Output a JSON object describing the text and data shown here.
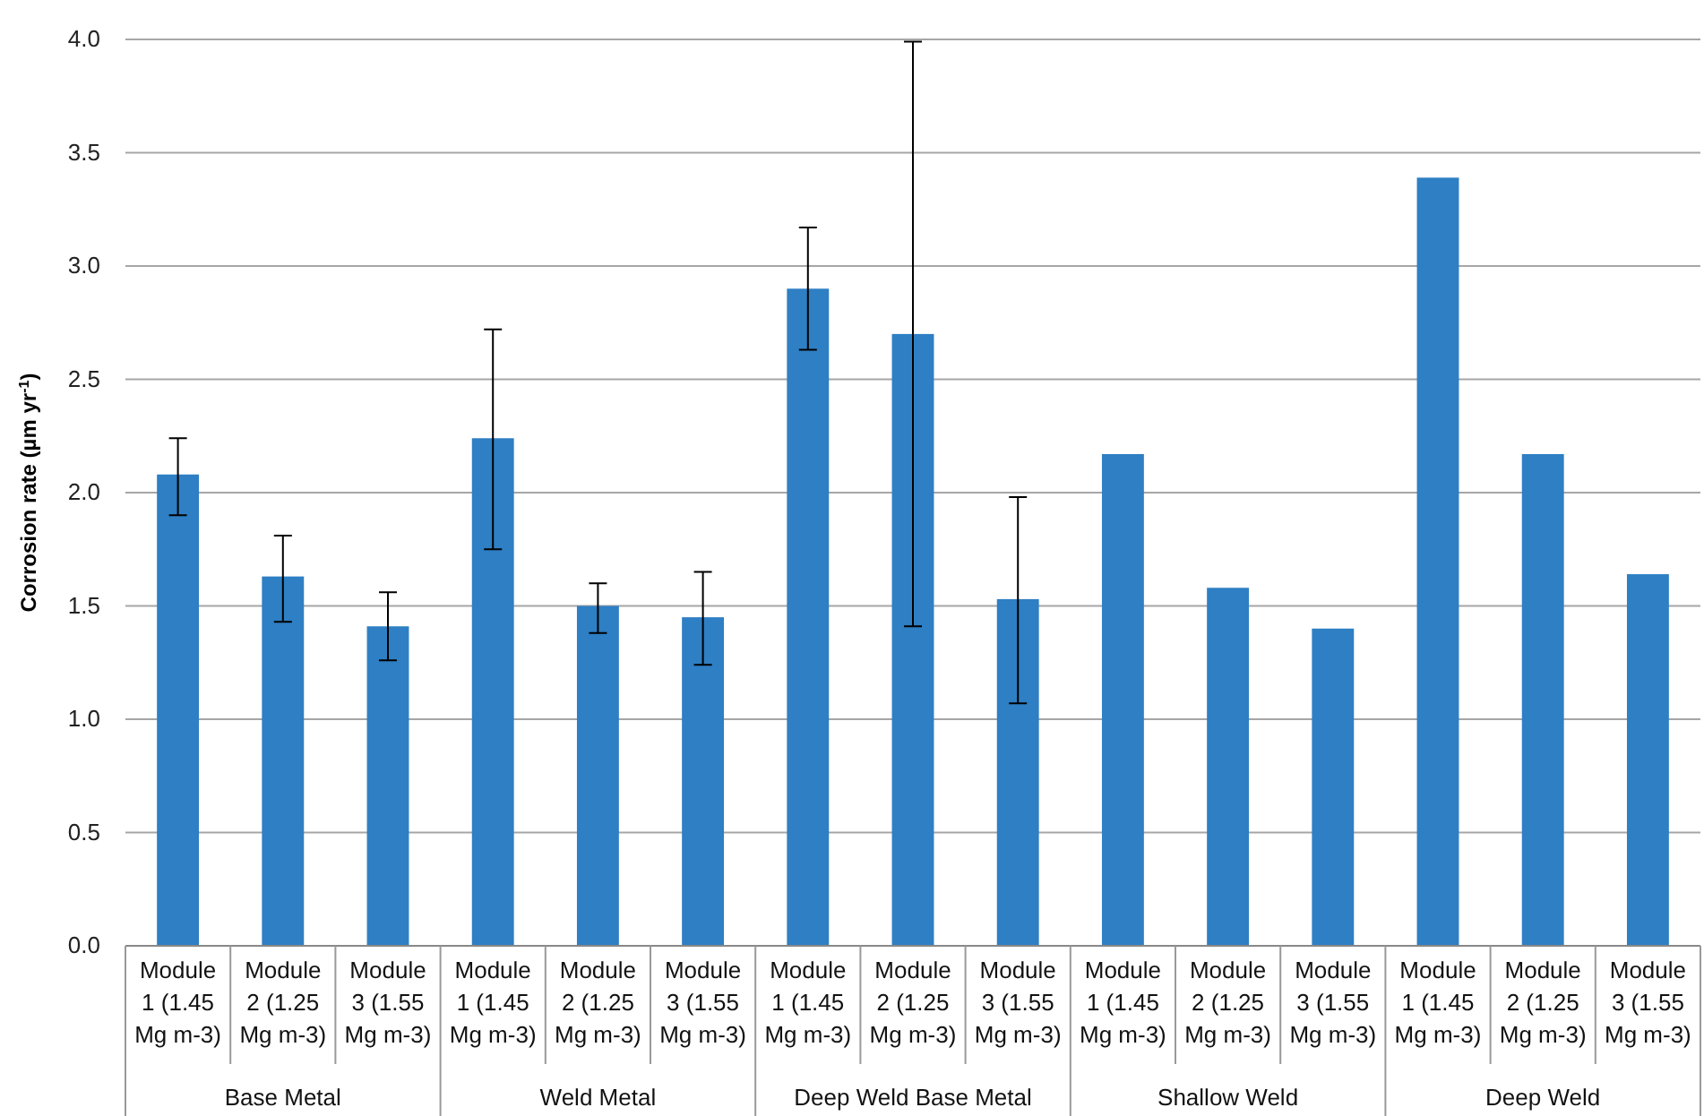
{
  "chart_data": {
    "type": "bar",
    "ylabel": "Corrosion rate (µm yr$^{-1}$)",
    "categories": [
      "Module 1 (1.45 Mg m-3)",
      "Module 2 (1.25 Mg m-3)",
      "Module 3 (1.55 Mg m-3)",
      "Module 1 (1.45 Mg m-3)",
      "Module 2 (1.25 Mg m-3)",
      "Module 3 (1.55 Mg m-3)",
      "Module 1 (1.45 Mg m-3)",
      "Module 2 (1.25 Mg m-3)",
      "Module 3 (1.55 Mg m-3)",
      "Module 1 (1.45 Mg m-3)",
      "Module 2 (1.25 Mg m-3)",
      "Module 3 (1.55 Mg m-3)",
      "Module 1 (1.45 Mg m-3)",
      "Module 2 (1.25 Mg m-3)",
      "Module 3 (1.55 Mg m-3)"
    ],
    "values": [
      2.08,
      1.63,
      1.41,
      2.24,
      1.5,
      1.45,
      2.9,
      2.7,
      1.53,
      2.17,
      1.58,
      1.4,
      3.39,
      2.17,
      1.64
    ],
    "errors": [
      [
        1.9,
        2.24
      ],
      [
        1.43,
        1.81
      ],
      [
        1.26,
        1.56
      ],
      [
        1.75,
        2.72
      ],
      [
        1.38,
        1.6
      ],
      [
        1.24,
        1.65
      ],
      [
        2.63,
        3.17
      ],
      [
        1.41,
        3.99
      ],
      [
        1.07,
        1.98
      ],
      null,
      null,
      null,
      null,
      null,
      null
    ],
    "color": "#2e7fc4",
    "ylim": [
      0,
      4
    ],
    "yticks": [
      {
        "value": 0,
        "label": "0.0"
      },
      {
        "value": 0.5,
        "label": "0.5"
      },
      {
        "value": 1,
        "label": "1.0"
      },
      {
        "value": 1.5,
        "label": "1.5"
      },
      {
        "value": 2,
        "label": "2.0"
      },
      {
        "value": 2.5,
        "label": "2.5"
      },
      {
        "value": 3,
        "label": "3.0"
      },
      {
        "value": 3.5,
        "label": "3.5"
      },
      {
        "value": 4,
        "label": "4.0"
      }
    ],
    "grid": "y",
    "annotations": [
      "Base Metal",
      "Weld Metal",
      "Deep Weld Base Metal",
      "Shallow Weld",
      "Deep Weld"
    ]
  }
}
